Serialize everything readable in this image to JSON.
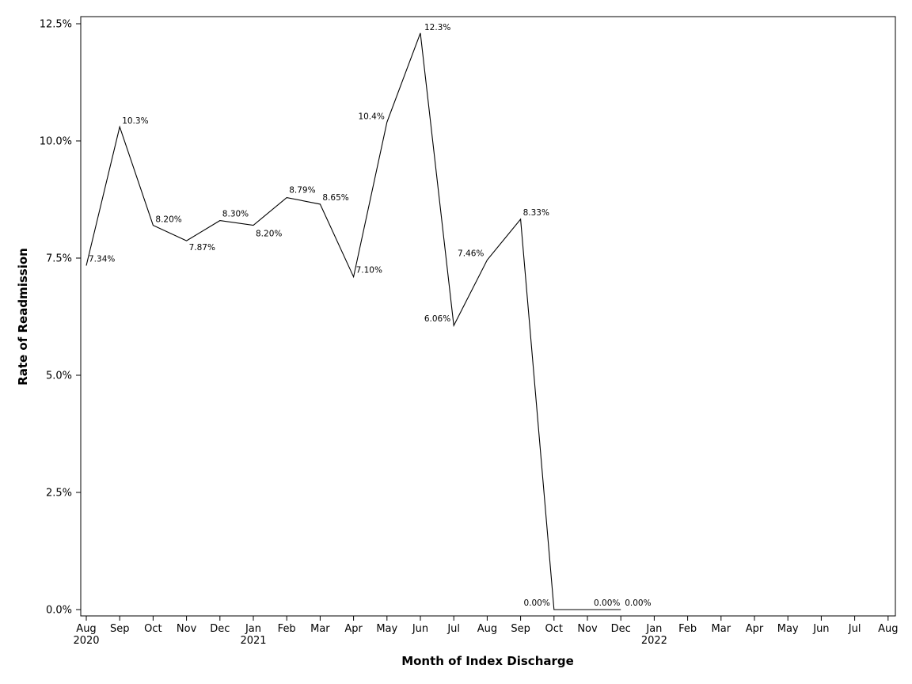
{
  "chart_data": {
    "type": "line",
    "xlabel": "Month of Index Discharge",
    "ylabel": "Rate of Readmission",
    "ylim": [
      0,
      12.5
    ],
    "y_ticks": [
      "0.0%",
      "2.5%",
      "5.0%",
      "7.5%",
      "10.0%",
      "12.5%"
    ],
    "y_tick_values": [
      0,
      2.5,
      5,
      7.5,
      10,
      12.5
    ],
    "x_ticks": [
      {
        "month": "Aug",
        "year": "2020"
      },
      {
        "month": "Sep",
        "year": ""
      },
      {
        "month": "Oct",
        "year": ""
      },
      {
        "month": "Nov",
        "year": ""
      },
      {
        "month": "Dec",
        "year": ""
      },
      {
        "month": "Jan",
        "year": "2021"
      },
      {
        "month": "Feb",
        "year": ""
      },
      {
        "month": "Mar",
        "year": ""
      },
      {
        "month": "Apr",
        "year": ""
      },
      {
        "month": "May",
        "year": ""
      },
      {
        "month": "Jun",
        "year": ""
      },
      {
        "month": "Jul",
        "year": ""
      },
      {
        "month": "Aug",
        "year": ""
      },
      {
        "month": "Sep",
        "year": ""
      },
      {
        "month": "Oct",
        "year": ""
      },
      {
        "month": "Nov",
        "year": ""
      },
      {
        "month": "Dec",
        "year": ""
      },
      {
        "month": "Jan",
        "year": "2022"
      },
      {
        "month": "Feb",
        "year": ""
      },
      {
        "month": "Mar",
        "year": ""
      },
      {
        "month": "Apr",
        "year": ""
      },
      {
        "month": "May",
        "year": ""
      },
      {
        "month": "Jun",
        "year": ""
      },
      {
        "month": "Jul",
        "year": ""
      },
      {
        "month": "Aug",
        "year": ""
      }
    ],
    "series": [
      {
        "values": [
          7.34,
          10.3,
          8.2,
          7.87,
          8.3,
          8.2,
          8.79,
          8.65,
          7.1,
          10.4,
          12.3,
          6.06,
          7.46,
          8.33,
          0,
          0,
          0
        ],
        "labels": [
          "7.34%",
          "10.3%",
          "8.20%",
          "7.87%",
          "8.30%",
          "8.20%",
          "8.79%",
          "8.65%",
          "7.10%",
          "10.4%",
          "12.3%",
          "6.06%",
          "7.46%",
          "8.33%",
          "0.00%",
          "0.00%",
          "0.00%"
        ]
      }
    ],
    "grid": false,
    "line_color": "#000000"
  }
}
